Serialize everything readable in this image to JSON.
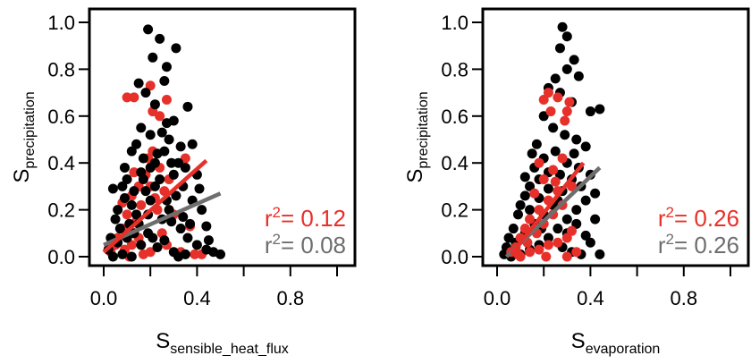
{
  "colors": {
    "black": "#000000",
    "red": "#e8302a",
    "gray": "#6e6e6e"
  },
  "chart_data": [
    {
      "type": "scatter",
      "xlabel": {
        "base": "S",
        "sub": "sensible_heat_flux"
      },
      "ylabel": {
        "base": "S",
        "sub": "precipitation"
      },
      "xlim": [
        0.0,
        1.0
      ],
      "ylim": [
        0.0,
        1.0
      ],
      "xticks": [
        0.0,
        0.2,
        0.4,
        0.6,
        0.8,
        1.0
      ],
      "xtick_labels": [
        "0.0",
        "",
        "0.4",
        "",
        "0.8",
        ""
      ],
      "yticks": [
        0.0,
        0.2,
        0.4,
        0.6,
        0.8,
        1.0
      ],
      "ytick_labels": [
        "0.0",
        "0.2",
        "0.4",
        "0.6",
        "0.8",
        "1.0"
      ],
      "grid": false,
      "series": [
        {
          "color": "red",
          "r2_label": "r",
          "r2_value": "= 0.12",
          "fit": {
            "x": [
              0.0,
              0.44
            ],
            "y": [
              0.02,
              0.41
            ]
          },
          "points": [
            [
              0.1,
              0.68
            ],
            [
              0.13,
              0.68
            ],
            [
              0.2,
              0.73
            ],
            [
              0.21,
              0.62
            ],
            [
              0.24,
              0.6
            ],
            [
              0.27,
              0.67
            ],
            [
              0.35,
              0.42
            ],
            [
              0.37,
              0.13
            ],
            [
              0.42,
              0.01
            ],
            [
              0.39,
              0.01
            ],
            [
              0.12,
              0.26
            ],
            [
              0.15,
              0.3
            ],
            [
              0.18,
              0.35
            ],
            [
              0.2,
              0.3
            ],
            [
              0.1,
              0.18
            ],
            [
              0.08,
              0.12
            ],
            [
              0.05,
              0.05
            ],
            [
              0.03,
              0.02
            ],
            [
              0.06,
              0.08
            ],
            [
              0.09,
              0.03
            ],
            [
              0.12,
              0.05
            ],
            [
              0.15,
              0.08
            ],
            [
              0.14,
              0.15
            ],
            [
              0.16,
              0.22
            ],
            [
              0.22,
              0.25
            ],
            [
              0.26,
              0.28
            ],
            [
              0.24,
              0.38
            ],
            [
              0.19,
              0.42
            ],
            [
              0.21,
              0.45
            ],
            [
              0.28,
              0.33
            ],
            [
              0.3,
              0.18
            ],
            [
              0.25,
              0.1
            ],
            [
              0.11,
              0.0
            ],
            [
              0.17,
              0.01
            ],
            [
              0.2,
              0.02
            ],
            [
              0.13,
              0.36
            ],
            [
              0.08,
              0.23
            ],
            [
              0.23,
              0.2
            ],
            [
              0.27,
              0.05
            ],
            [
              0.33,
              0.02
            ]
          ]
        },
        {
          "color": "gray",
          "r2_label": "r",
          "r2_value": "= 0.08",
          "fit": {
            "x": [
              0.0,
              0.5
            ],
            "y": [
              0.05,
              0.27
            ]
          }
        },
        {
          "color": "black",
          "points": [
            [
              0.19,
              0.97
            ],
            [
              0.24,
              0.93
            ],
            [
              0.31,
              0.89
            ],
            [
              0.21,
              0.85
            ],
            [
              0.27,
              0.81
            ],
            [
              0.15,
              0.74
            ],
            [
              0.26,
              0.75
            ],
            [
              0.18,
              0.7
            ],
            [
              0.22,
              0.65
            ],
            [
              0.3,
              0.58
            ],
            [
              0.36,
              0.64
            ],
            [
              0.16,
              0.55
            ],
            [
              0.2,
              0.52
            ],
            [
              0.25,
              0.53
            ],
            [
              0.28,
              0.5
            ],
            [
              0.33,
              0.47
            ],
            [
              0.14,
              0.48
            ],
            [
              0.12,
              0.45
            ],
            [
              0.17,
              0.42
            ],
            [
              0.22,
              0.4
            ],
            [
              0.26,
              0.45
            ],
            [
              0.32,
              0.4
            ],
            [
              0.35,
              0.38
            ],
            [
              0.4,
              0.35
            ],
            [
              0.3,
              0.35
            ],
            [
              0.24,
              0.33
            ],
            [
              0.2,
              0.38
            ],
            [
              0.16,
              0.36
            ],
            [
              0.1,
              0.33
            ],
            [
              0.08,
              0.3
            ],
            [
              0.04,
              0.29
            ],
            [
              0.06,
              0.2
            ],
            [
              0.09,
              0.25
            ],
            [
              0.12,
              0.22
            ],
            [
              0.14,
              0.18
            ],
            [
              0.18,
              0.28
            ],
            [
              0.22,
              0.3
            ],
            [
              0.27,
              0.24
            ],
            [
              0.31,
              0.26
            ],
            [
              0.34,
              0.3
            ],
            [
              0.38,
              0.24
            ],
            [
              0.42,
              0.2
            ],
            [
              0.29,
              0.15
            ],
            [
              0.33,
              0.12
            ],
            [
              0.36,
              0.08
            ],
            [
              0.4,
              0.05
            ],
            [
              0.44,
              0.03
            ],
            [
              0.47,
              0.02
            ],
            [
              0.5,
              0.01
            ],
            [
              0.45,
              0.07
            ],
            [
              0.26,
              0.07
            ],
            [
              0.23,
              0.04
            ],
            [
              0.19,
              0.1
            ],
            [
              0.16,
              0.05
            ],
            [
              0.13,
              0.1
            ],
            [
              0.1,
              0.08
            ],
            [
              0.07,
              0.12
            ],
            [
              0.05,
              0.16
            ],
            [
              0.03,
              0.08
            ],
            [
              0.02,
              0.03
            ],
            [
              0.04,
              0.0
            ],
            [
              0.08,
              0.01
            ],
            [
              0.12,
              0.0
            ],
            [
              0.15,
              0.14
            ],
            [
              0.19,
              0.18
            ],
            [
              0.25,
              0.16
            ],
            [
              0.28,
              0.2
            ],
            [
              0.34,
              0.17
            ],
            [
              0.37,
              0.14
            ],
            [
              0.21,
              0.08
            ],
            [
              0.3,
              0.02
            ],
            [
              0.35,
              0.01
            ],
            [
              0.32,
              0.0
            ],
            [
              0.06,
              0.06
            ],
            [
              0.11,
              0.14
            ],
            [
              0.17,
              0.33
            ],
            [
              0.23,
              0.44
            ],
            [
              0.29,
              0.4
            ],
            [
              0.13,
              0.28
            ],
            [
              0.2,
              0.24
            ],
            [
              0.38,
              0.48
            ],
            [
              0.27,
              0.57
            ],
            [
              0.09,
              0.38
            ],
            [
              0.41,
              0.29
            ],
            [
              0.44,
              0.13
            ]
          ]
        }
      ]
    },
    {
      "type": "scatter",
      "xlabel": {
        "base": "S",
        "sub": "evaporation"
      },
      "ylabel": {
        "base": "S",
        "sub": "precipitation"
      },
      "xlim": [
        0.0,
        1.0
      ],
      "ylim": [
        0.0,
        1.0
      ],
      "xticks": [
        0.0,
        0.2,
        0.4,
        0.6,
        0.8,
        1.0
      ],
      "xtick_labels": [
        "0.0",
        "",
        "0.4",
        "",
        "0.8",
        ""
      ],
      "yticks": [
        0.0,
        0.2,
        0.4,
        0.6,
        0.8,
        1.0
      ],
      "ytick_labels": [
        "0.0",
        "0.2",
        "0.4",
        "0.6",
        "0.8",
        "1.0"
      ],
      "grid": false,
      "series": [
        {
          "color": "red",
          "r2_label": "r",
          "r2_value": "= 0.26",
          "fit": {
            "x": [
              0.06,
              0.37
            ],
            "y": [
              0.01,
              0.4
            ]
          }
        },
        {
          "color": "gray",
          "r2_label": "r",
          "r2_value": "= 0.26",
          "fit": {
            "x": [
              0.04,
              0.44
            ],
            "y": [
              0.0,
              0.38
            ]
          }
        },
        {
          "color": "black",
          "points": [
            [
              0.28,
              0.98
            ],
            [
              0.3,
              0.94
            ],
            [
              0.27,
              0.89
            ],
            [
              0.33,
              0.84
            ],
            [
              0.3,
              0.8
            ],
            [
              0.25,
              0.76
            ],
            [
              0.35,
              0.77
            ],
            [
              0.22,
              0.72
            ],
            [
              0.27,
              0.7
            ],
            [
              0.32,
              0.66
            ],
            [
              0.4,
              0.62
            ],
            [
              0.44,
              0.63
            ],
            [
              0.2,
              0.6
            ],
            [
              0.24,
              0.55
            ],
            [
              0.29,
              0.52
            ],
            [
              0.34,
              0.5
            ],
            [
              0.38,
              0.47
            ],
            [
              0.17,
              0.48
            ],
            [
              0.15,
              0.44
            ],
            [
              0.2,
              0.42
            ],
            [
              0.25,
              0.45
            ],
            [
              0.3,
              0.4
            ],
            [
              0.35,
              0.38
            ],
            [
              0.4,
              0.35
            ],
            [
              0.22,
              0.36
            ],
            [
              0.18,
              0.33
            ],
            [
              0.14,
              0.3
            ],
            [
              0.12,
              0.26
            ],
            [
              0.1,
              0.22
            ],
            [
              0.09,
              0.18
            ],
            [
              0.07,
              0.12
            ],
            [
              0.05,
              0.08
            ],
            [
              0.04,
              0.04
            ],
            [
              0.03,
              0.01
            ],
            [
              0.06,
              0.0
            ],
            [
              0.1,
              0.01
            ],
            [
              0.14,
              0.03
            ],
            [
              0.18,
              0.05
            ],
            [
              0.22,
              0.08
            ],
            [
              0.26,
              0.12
            ],
            [
              0.3,
              0.16
            ],
            [
              0.34,
              0.2
            ],
            [
              0.38,
              0.24
            ],
            [
              0.42,
              0.27
            ],
            [
              0.36,
              0.3
            ],
            [
              0.32,
              0.33
            ],
            [
              0.28,
              0.28
            ],
            [
              0.24,
              0.22
            ],
            [
              0.2,
              0.18
            ],
            [
              0.16,
              0.14
            ],
            [
              0.12,
              0.1
            ],
            [
              0.08,
              0.06
            ],
            [
              0.28,
              0.04
            ],
            [
              0.32,
              0.02
            ],
            [
              0.36,
              0.01
            ],
            [
              0.4,
              0.06
            ],
            [
              0.44,
              0.01
            ],
            [
              0.26,
              0.24
            ],
            [
              0.22,
              0.29
            ],
            [
              0.18,
              0.25
            ],
            [
              0.14,
              0.2
            ],
            [
              0.3,
              0.1
            ],
            [
              0.34,
              0.14
            ],
            [
              0.38,
              0.09
            ],
            [
              0.16,
              0.38
            ],
            [
              0.12,
              0.34
            ],
            [
              0.42,
              0.16
            ],
            [
              0.27,
              0.35
            ],
            [
              0.33,
              0.44
            ],
            [
              0.19,
              0.12
            ]
          ]
        },
        {
          "color": "red",
          "points": [
            [
              0.22,
              0.7
            ],
            [
              0.2,
              0.67
            ],
            [
              0.26,
              0.68
            ],
            [
              0.31,
              0.66
            ],
            [
              0.23,
              0.62
            ],
            [
              0.29,
              0.58
            ],
            [
              0.3,
              0.62
            ],
            [
              0.18,
              0.4
            ],
            [
              0.2,
              0.33
            ],
            [
              0.24,
              0.37
            ],
            [
              0.28,
              0.42
            ],
            [
              0.32,
              0.3
            ],
            [
              0.26,
              0.28
            ],
            [
              0.22,
              0.24
            ],
            [
              0.18,
              0.2
            ],
            [
              0.14,
              0.16
            ],
            [
              0.12,
              0.12
            ],
            [
              0.1,
              0.08
            ],
            [
              0.08,
              0.04
            ],
            [
              0.06,
              0.02
            ],
            [
              0.1,
              0.0
            ],
            [
              0.14,
              0.02
            ],
            [
              0.18,
              0.03
            ],
            [
              0.22,
              0.05
            ],
            [
              0.26,
              0.06
            ],
            [
              0.3,
              0.08
            ],
            [
              0.16,
              0.27
            ],
            [
              0.2,
              0.14
            ],
            [
              0.24,
              0.18
            ],
            [
              0.28,
              0.22
            ],
            [
              0.34,
              0.02
            ],
            [
              0.13,
              0.06
            ],
            [
              0.17,
              0.1
            ],
            [
              0.25,
              0.32
            ],
            [
              0.21,
              0.0
            ],
            [
              0.09,
              0.01
            ],
            [
              0.3,
              0.0
            ],
            [
              0.32,
              0.11
            ]
          ]
        }
      ]
    }
  ]
}
